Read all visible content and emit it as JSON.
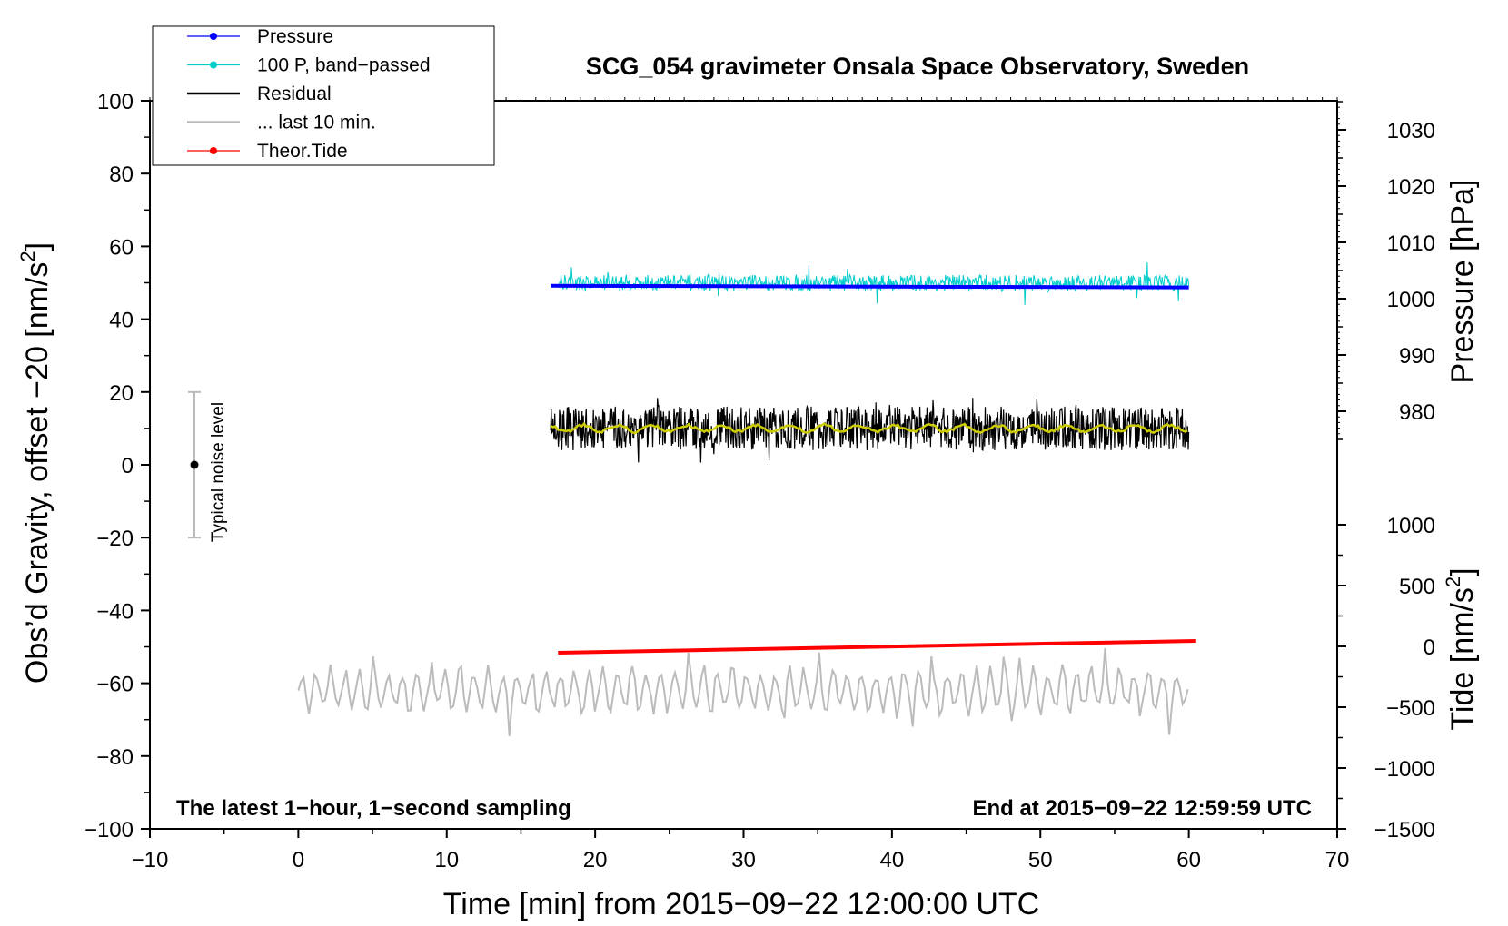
{
  "chart_data": {
    "type": "line",
    "title": "SCG_054 gravimeter Onsala Space Observatory, Sweden",
    "xlabel": "Time [min] from 2015−09−22 12:00:00 UTC",
    "ylabel_left": "Obs’d Gravity, offset −20 [nm/s",
    "ylabel_left_sup": "2",
    "ylabel_left_end": "]",
    "ylabel_right_pressure": "Pressure [hPa]",
    "ylabel_right_tide": "Tide [nm/s",
    "ylabel_right_tide_sup": "2",
    "ylabel_right_tide_end": "]",
    "xlim": [
      -10,
      70
    ],
    "ylim": [
      -100,
      100
    ],
    "x_ticks": [
      {
        "v": -10,
        "label": "−10"
      },
      {
        "v": 0,
        "label": "0"
      },
      {
        "v": 10,
        "label": "10"
      },
      {
        "v": 20,
        "label": "20"
      },
      {
        "v": 30,
        "label": "30"
      },
      {
        "v": 40,
        "label": "40"
      },
      {
        "v": 50,
        "label": "50"
      },
      {
        "v": 60,
        "label": "60"
      },
      {
        "v": 70,
        "label": "70"
      }
    ],
    "y_ticks": [
      {
        "v": 100,
        "label": "100"
      },
      {
        "v": 80,
        "label": "80"
      },
      {
        "v": 60,
        "label": "60"
      },
      {
        "v": 40,
        "label": "40"
      },
      {
        "v": 20,
        "label": "20"
      },
      {
        "v": 0,
        "label": "0"
      },
      {
        "v": -20,
        "label": "−20"
      },
      {
        "v": -40,
        "label": "−40"
      },
      {
        "v": -60,
        "label": "−60"
      },
      {
        "v": -80,
        "label": "−80"
      },
      {
        "v": -100,
        "label": "−100"
      }
    ],
    "pressure_axis": {
      "range": [
        970,
        1035
      ],
      "ticks": [
        {
          "v": 1030,
          "label": "1030"
        },
        {
          "v": 1020,
          "label": "1020"
        },
        {
          "v": 1010,
          "label": "1010"
        },
        {
          "v": 1000,
          "label": "1000"
        },
        {
          "v": 990,
          "label": "990"
        },
        {
          "v": 980,
          "label": "980"
        }
      ]
    },
    "tide_axis": {
      "range": [
        -1500,
        1000
      ],
      "ticks": [
        {
          "v": 1000,
          "label": "1000"
        },
        {
          "v": 500,
          "label": "500"
        },
        {
          "v": 0,
          "label": "0"
        },
        {
          "v": -500,
          "label": "−500"
        },
        {
          "v": -1000,
          "label": "−1000"
        },
        {
          "v": -1500,
          "label": "−1500"
        }
      ]
    },
    "series": [
      {
        "name": "Pressure",
        "color": "#0000ff",
        "axis": "pressure",
        "x": [
          17,
          60
        ],
        "values": [
          1002.3,
          1002.0
        ]
      },
      {
        "name": "100 P, band−passed",
        "color": "#00cccc",
        "axis": "left",
        "x_start": 17.5,
        "x_end": 60,
        "center": 50,
        "amplitude": 4
      },
      {
        "name": "Residual",
        "color": "#000000",
        "axis": "left",
        "x_start": 17,
        "x_end": 60,
        "center": 10,
        "amplitude": 6
      },
      {
        "name": "... last 10 min.",
        "color": "#bbbbbb",
        "axis": "left",
        "x_start": 0,
        "x_end": 60,
        "center": -62,
        "amplitude": 5
      },
      {
        "name": "Theor.Tide",
        "color": "#ff0000",
        "axis": "tide",
        "x": [
          17.5,
          60.5
        ],
        "values": [
          -52,
          45
        ]
      }
    ],
    "smoothed_residual": {
      "color": "#cccc00",
      "center": 10
    },
    "noise_bar": {
      "label": "Typical noise level",
      "x": -7,
      "center": 0,
      "low": -20,
      "high": 20,
      "color": "#bbbbbb"
    },
    "legend_position": "top-left"
  },
  "annotations": {
    "left_note": "The latest 1−hour, 1−second sampling",
    "right_note": "End at 2015−09−22 12:59:59 UTC"
  }
}
